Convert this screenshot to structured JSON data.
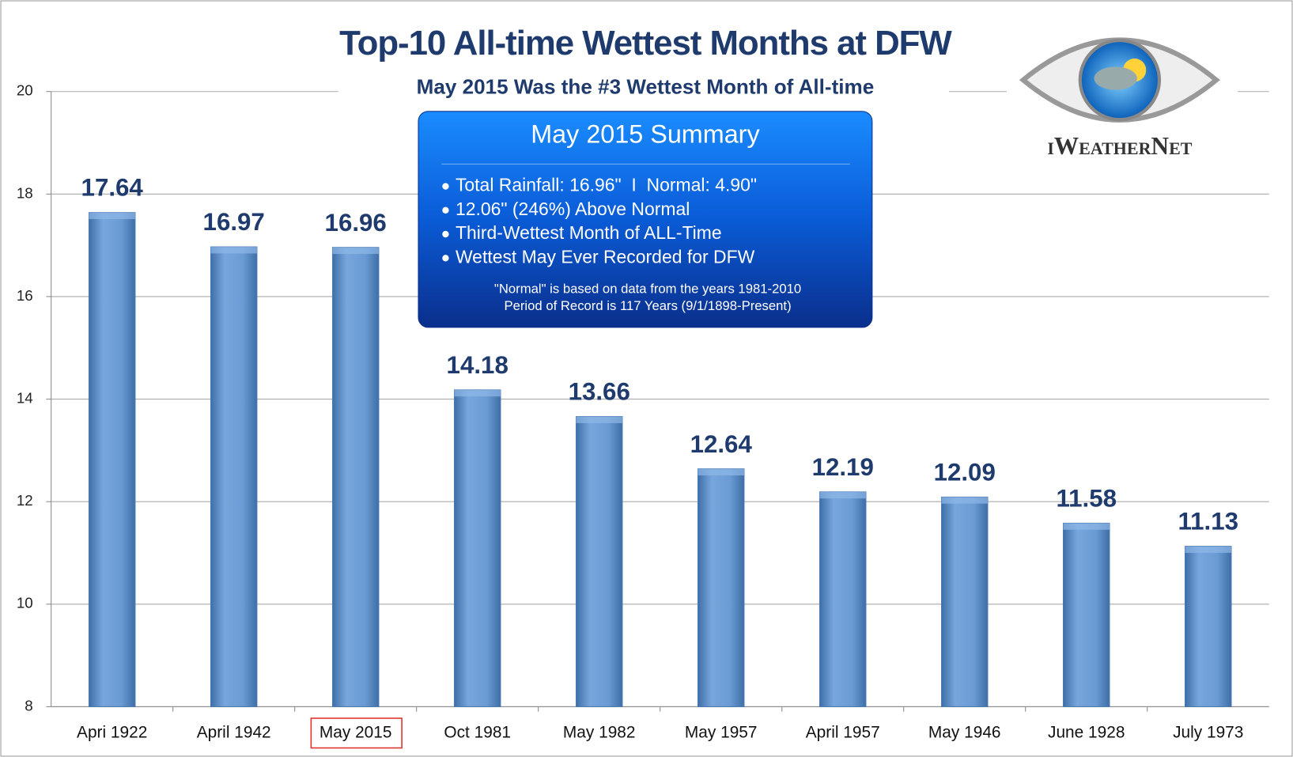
{
  "chart_data": {
    "type": "bar",
    "title": "Top-10 All-time Wettest Months at DFW",
    "subtitle": "May 2015 Was the #3 Wettest Month of All-time",
    "categories": [
      "Apri 1922",
      "April 1942",
      "May 2015",
      "Oct 1981",
      "May 1982",
      "May 1957",
      "April 1957",
      "May 1946",
      "June 1928",
      "July 1973"
    ],
    "values": [
      17.64,
      16.97,
      16.96,
      14.18,
      13.66,
      12.64,
      12.19,
      12.09,
      11.58,
      11.13
    ],
    "color": "#6a9bd3",
    "ylim": [
      8,
      20
    ],
    "yticks": [
      8,
      10,
      12,
      14,
      16,
      18,
      20
    ],
    "grid": true,
    "summary": {
      "title": "May 2015 Summary",
      "bullets": [
        "Total Rainfall: 16.96\"  I  Normal: 4.90\"",
        "12.06\" (246%) Above Normal",
        "Third-Wettest Month of ALL-Time",
        "Wettest May Ever Recorded for DFW"
      ],
      "notes": [
        "\"Normal\" is based on data from the years 1981-2010",
        "Period of Record is 117 Years (9/1/1898-Present)"
      ]
    },
    "logo": "iWeatherNet"
  }
}
